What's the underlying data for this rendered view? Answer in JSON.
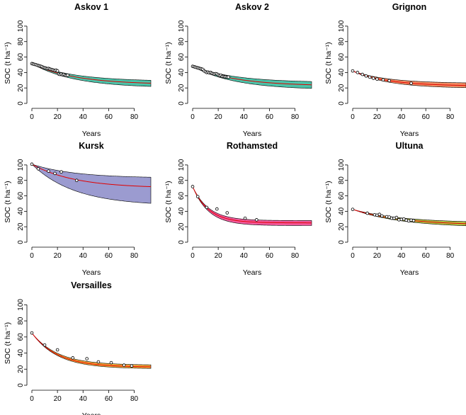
{
  "chart_data": [
    {
      "type": "line",
      "title": "Askov 1",
      "xlabel": "Years",
      "ylabel": "SOC (t ha⁻¹)",
      "xlim": [
        0,
        93
      ],
      "ylim": [
        0,
        110
      ],
      "xticks": [
        0,
        20,
        40,
        60,
        80
      ],
      "yticks": [
        0,
        20,
        40,
        60,
        80,
        100
      ],
      "band_color": "#2bb89a",
      "line_color": "#e00000",
      "start_value": 51.5,
      "band_lower_end": 20,
      "band_upper_end": 28.5,
      "line_end": 24.5,
      "decay_rate": 0.03,
      "observed": {
        "x": [
          0,
          1,
          2,
          3,
          4,
          5,
          6,
          7,
          8,
          9,
          10,
          11,
          12,
          13,
          14,
          15,
          16,
          17,
          18,
          19,
          20,
          21,
          22,
          23,
          24,
          25,
          26,
          27,
          28
        ],
        "y": [
          51.5,
          51,
          50.5,
          50.2,
          49.5,
          49,
          48.5,
          48,
          47.5,
          46.5,
          46,
          45.5,
          45,
          45.2,
          44.5,
          44,
          43.5,
          43,
          42.5,
          43,
          42,
          38,
          37.5,
          38,
          37,
          37.5,
          36.5,
          36,
          36.5
        ]
      }
    },
    {
      "type": "line",
      "title": "Askov 2",
      "xlabel": "Years",
      "ylabel": "SOC (t ha⁻¹)",
      "xlim": [
        0,
        93
      ],
      "ylim": [
        0,
        110
      ],
      "xticks": [
        0,
        20,
        40,
        60,
        80
      ],
      "yticks": [
        0,
        20,
        40,
        60,
        80,
        100
      ],
      "band_color": "#2bb89a",
      "line_color": "#e00000",
      "start_value": 48,
      "band_lower_end": 17.5,
      "band_upper_end": 27,
      "line_end": 22.5,
      "decay_rate": 0.03,
      "observed": {
        "x": [
          0,
          1,
          2,
          3,
          4,
          5,
          6,
          7,
          8,
          9,
          10,
          11,
          12,
          13,
          14,
          15,
          16,
          17,
          18,
          19,
          20,
          21,
          22,
          23,
          24,
          25,
          26,
          27,
          28
        ],
        "y": [
          48,
          47.5,
          47,
          46.5,
          46,
          45.5,
          45,
          44.5,
          44,
          42,
          41,
          40,
          40.5,
          39.5,
          40,
          39,
          38.5,
          38,
          38.5,
          38,
          37,
          36,
          36.5,
          35,
          35,
          34.5,
          34.5,
          34,
          34
        ]
      }
    },
    {
      "type": "line",
      "title": "Grignon",
      "xlabel": "Years",
      "ylabel": "SOC (t ha⁻¹)",
      "xlim": [
        0,
        93
      ],
      "ylim": [
        0,
        110
      ],
      "xticks": [
        0,
        20,
        40,
        60,
        80
      ],
      "yticks": [
        0,
        20,
        40,
        60,
        80,
        100
      ],
      "band_color": "#f07846",
      "line_color": "#e00000",
      "start_value": 42,
      "band_lower_end": 19.5,
      "band_upper_end": 26,
      "line_end": 22.5,
      "decay_rate": 0.035,
      "observed": {
        "x": [
          0,
          4,
          8,
          11,
          14,
          17,
          20,
          25,
          30,
          48
        ],
        "y": [
          42,
          40,
          37.5,
          35.5,
          34,
          32.5,
          31.5,
          30.5,
          29.5,
          26
        ]
      }
    },
    {
      "type": "line",
      "title": "Kursk",
      "xlabel": "Years",
      "ylabel": "SOC (t ha⁻¹)",
      "xlim": [
        0,
        93
      ],
      "ylim": [
        0,
        110
      ],
      "xticks": [
        0,
        20,
        40,
        60,
        80
      ],
      "yticks": [
        0,
        20,
        40,
        60,
        80,
        100
      ],
      "band_color": "#8a8ac8",
      "line_color": "#e00000",
      "start_value": 101,
      "band_lower_end": 47,
      "band_upper_end": 83,
      "line_end": 70,
      "decay_rate": 0.03,
      "observed": {
        "x": [
          0,
          5,
          13,
          18,
          23,
          35
        ],
        "y": [
          101,
          95,
          92,
          89,
          91,
          80
        ]
      }
    },
    {
      "type": "line",
      "title": "Rothamsted",
      "xlabel": "Years",
      "ylabel": "SOC (t ha⁻¹)",
      "xlim": [
        0,
        93
      ],
      "ylim": [
        0,
        110
      ],
      "xticks": [
        0,
        20,
        40,
        60,
        80
      ],
      "yticks": [
        0,
        20,
        40,
        60,
        80,
        100
      ],
      "band_color": "#f03c8c",
      "line_color": "#e00000",
      "start_value": 72,
      "band_lower_end": 21.5,
      "band_upper_end": 28,
      "line_end": 25,
      "decay_rate": 0.08,
      "observed": {
        "x": [
          0,
          4,
          11,
          19,
          27,
          41,
          50
        ],
        "y": [
          72,
          59,
          45,
          43,
          38,
          31,
          29
        ]
      }
    },
    {
      "type": "line",
      "title": "Ultuna",
      "xlabel": "Years",
      "ylabel": "SOC (t ha⁻¹)",
      "xlim": [
        0,
        93
      ],
      "ylim": [
        0,
        110
      ],
      "xticks": [
        0,
        20,
        40,
        60,
        80
      ],
      "yticks": [
        0,
        20,
        40,
        60,
        80,
        100
      ],
      "band_color": "#a8b41e",
      "line_color": "#e00000",
      "start_value": 42.5,
      "band_lower_end": 19,
      "band_upper_end": 25,
      "line_end": 22,
      "decay_rate": 0.025,
      "observed": {
        "x": [
          0,
          12,
          18,
          20,
          22,
          24,
          28,
          30,
          32,
          34,
          36,
          38,
          40,
          42,
          44,
          46,
          48,
          50
        ],
        "y": [
          42.5,
          37.5,
          35.5,
          35,
          36,
          34,
          33,
          32.5,
          31,
          31,
          32,
          29,
          29.5,
          30,
          28.5,
          27.5,
          28.5,
          28
        ]
      }
    },
    {
      "type": "line",
      "title": "Versailles",
      "xlabel": "Years",
      "ylabel": "SOC (t ha⁻¹)",
      "xlim": [
        0,
        93
      ],
      "ylim": [
        0,
        110
      ],
      "xticks": [
        0,
        20,
        40,
        60,
        80
      ],
      "yticks": [
        0,
        20,
        40,
        60,
        80,
        100
      ],
      "band_color": "#f5a019",
      "line_color": "#e00000",
      "start_value": 65,
      "band_lower_end": 20.5,
      "band_upper_end": 25,
      "line_end": 22.5,
      "decay_rate": 0.05,
      "observed": {
        "x": [
          0,
          10,
          20,
          32,
          43,
          52,
          62,
          72,
          78
        ],
        "y": [
          65,
          50,
          44,
          34,
          33,
          29,
          28,
          25,
          24
        ]
      }
    }
  ]
}
